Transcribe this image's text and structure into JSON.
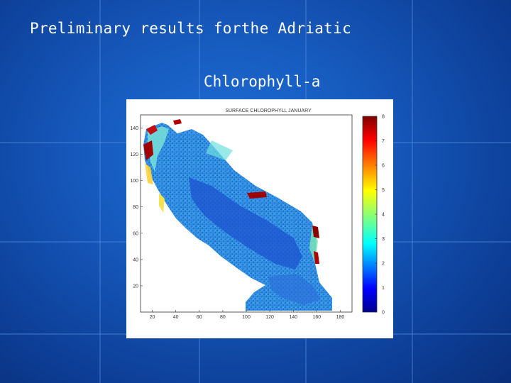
{
  "slide": {
    "title": "Preliminary results forthe Adriatic",
    "subtitle": "Chlorophyll-a"
  },
  "chart_data": {
    "type": "heatmap",
    "title": "SURFACE CHLOROPHYLL JANUARY",
    "xlabel": "",
    "ylabel": "",
    "xlim": [
      10,
      190
    ],
    "ylim": [
      0,
      150
    ],
    "x_ticks": [
      20,
      40,
      60,
      80,
      100,
      120,
      140,
      160,
      180
    ],
    "y_ticks": [
      20,
      40,
      60,
      80,
      100,
      120,
      140
    ],
    "colorbar": {
      "range": [
        0,
        8
      ],
      "ticks": [
        0,
        1,
        2,
        3,
        4,
        5,
        6,
        7,
        8
      ],
      "colormap": "jet"
    },
    "colors": {
      "background": "#175bbf",
      "low": "#0000c8",
      "mid": "#35d0d0",
      "high": "#8b0000"
    }
  }
}
